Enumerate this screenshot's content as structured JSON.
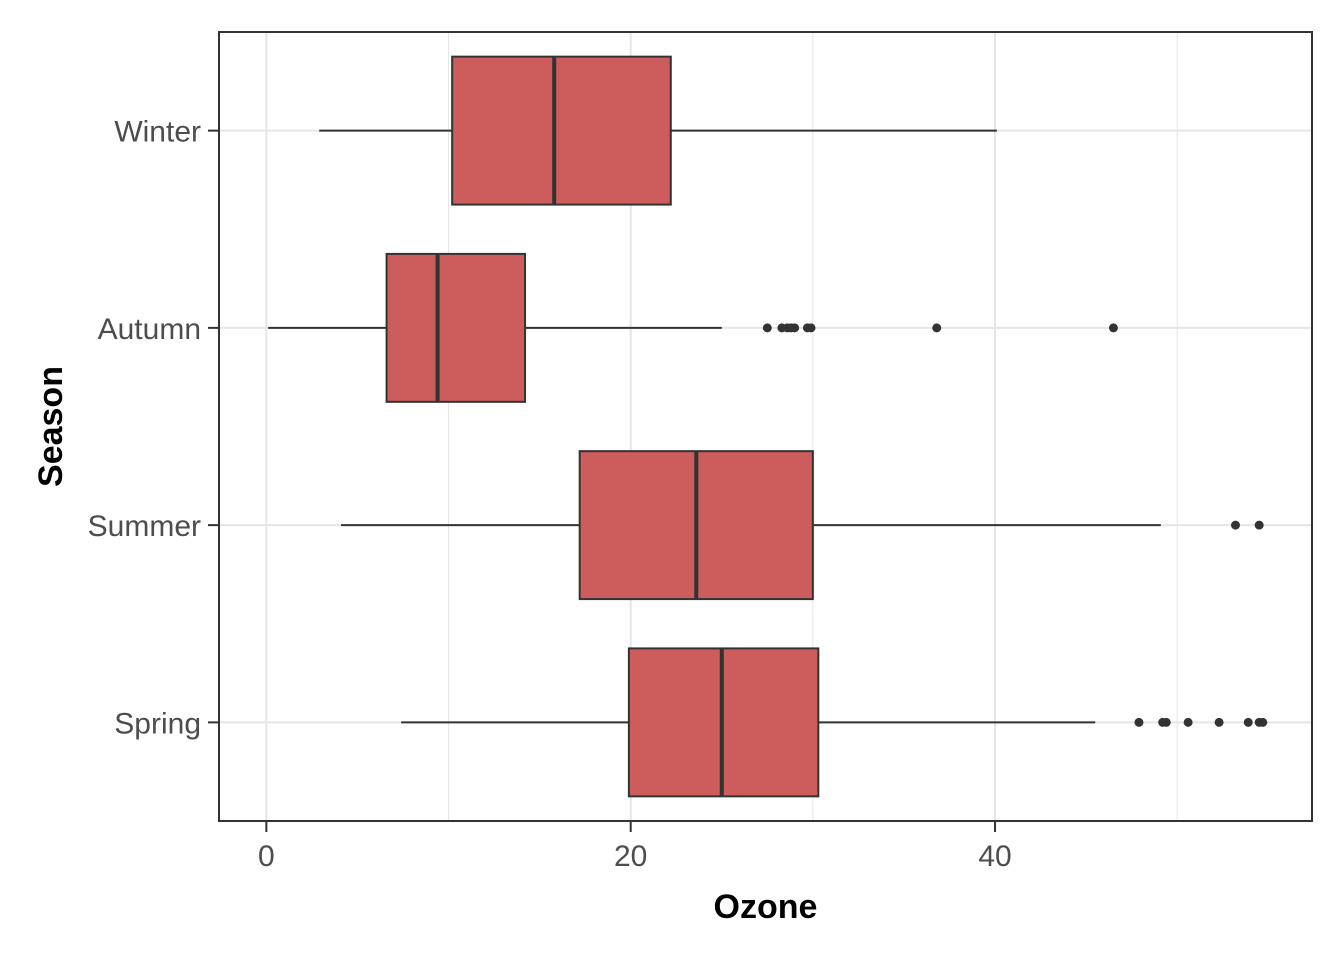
{
  "chart_data": {
    "type": "boxplot",
    "orientation": "horizontal",
    "title": "",
    "xlabel": "Ozone",
    "ylabel": "Season",
    "xlim": [
      -2.6,
      57.4
    ],
    "x_ticks": [
      0,
      20,
      40
    ],
    "grid": true,
    "legend": "none",
    "categories": [
      "Winter",
      "Autumn",
      "Summer",
      "Spring"
    ],
    "series": [
      {
        "category": "Winter",
        "whisker_low": 2.9,
        "q1": 10.2,
        "median": 15.8,
        "q3": 22.2,
        "whisker_high": 40.1,
        "outliers": []
      },
      {
        "category": "Autumn",
        "whisker_low": 0.1,
        "q1": 6.6,
        "median": 9.4,
        "q3": 14.2,
        "whisker_high": 25.0,
        "outliers": [
          27.5,
          28.3,
          28.6,
          28.8,
          29.0,
          29.7,
          29.9,
          36.8,
          46.5
        ]
      },
      {
        "category": "Summer",
        "whisker_low": 4.1,
        "q1": 17.2,
        "median": 23.6,
        "q3": 30.0,
        "whisker_high": 49.1,
        "outliers": [
          53.2,
          54.5
        ]
      },
      {
        "category": "Spring",
        "whisker_low": 7.4,
        "q1": 19.9,
        "median": 25.0,
        "q3": 30.3,
        "whisker_high": 45.5,
        "outliers": [
          47.9,
          49.2,
          49.4,
          50.6,
          52.3,
          53.9,
          54.5,
          54.7
        ]
      }
    ],
    "colors": {
      "box_fill": "#cd5c5c",
      "box_stroke": "#333333",
      "panel_border": "#333333",
      "grid": "#e5e5e5",
      "tick_text": "#4d4d4d",
      "title_text": "#000000"
    }
  }
}
